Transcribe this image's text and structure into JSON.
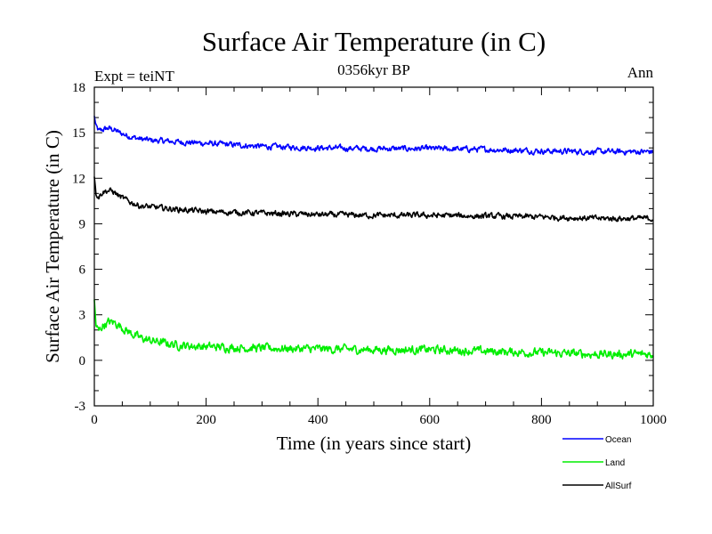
{
  "chart_data": {
    "type": "line",
    "title": "Surface Air Temperature (in C)",
    "subtitle": "0356kyr BP",
    "annotation_left": "Expt = teiNT",
    "annotation_right": "Ann",
    "xlabel": "Time (in years since start)",
    "ylabel": "Surface Air Temperature (in C)",
    "xlim": [
      0,
      1000
    ],
    "ylim": [
      -3,
      18
    ],
    "xticks": [
      0,
      200,
      400,
      600,
      800,
      1000
    ],
    "yticks": [
      -3,
      0,
      3,
      6,
      9,
      12,
      15,
      18
    ],
    "legend_position": "bottom-right",
    "series": [
      {
        "name": "Ocean",
        "color": "#0000ff",
        "x": [
          0,
          3,
          8,
          15,
          25,
          35,
          45,
          60,
          80,
          100,
          150,
          200,
          300,
          400,
          500,
          600,
          700,
          800,
          900,
          1000
        ],
        "values": [
          16.1,
          15.4,
          15.1,
          15.2,
          15.3,
          15.2,
          15.0,
          14.8,
          14.6,
          14.5,
          14.4,
          14.3,
          14.1,
          14.0,
          13.95,
          13.95,
          13.9,
          13.8,
          13.75,
          13.75
        ],
        "noise": 0.15
      },
      {
        "name": "Land",
        "color": "#00ee00",
        "x": [
          0,
          3,
          8,
          15,
          25,
          35,
          45,
          60,
          80,
          100,
          150,
          200,
          300,
          400,
          500,
          600,
          700,
          800,
          900,
          1000
        ],
        "values": [
          4.0,
          2.3,
          1.9,
          2.3,
          2.5,
          2.5,
          2.3,
          1.9,
          1.5,
          1.3,
          1.0,
          0.9,
          0.8,
          0.75,
          0.7,
          0.7,
          0.6,
          0.5,
          0.4,
          0.4
        ],
        "noise": 0.22
      },
      {
        "name": "AllSurf",
        "color": "#000000",
        "x": [
          0,
          3,
          8,
          15,
          25,
          35,
          45,
          60,
          80,
          100,
          150,
          200,
          300,
          400,
          500,
          600,
          700,
          800,
          900,
          1000
        ],
        "values": [
          12.1,
          11.0,
          10.8,
          11.1,
          11.2,
          11.1,
          10.8,
          10.5,
          10.2,
          10.1,
          9.95,
          9.8,
          9.7,
          9.6,
          9.55,
          9.55,
          9.5,
          9.45,
          9.35,
          9.35
        ],
        "noise": 0.15
      }
    ]
  }
}
